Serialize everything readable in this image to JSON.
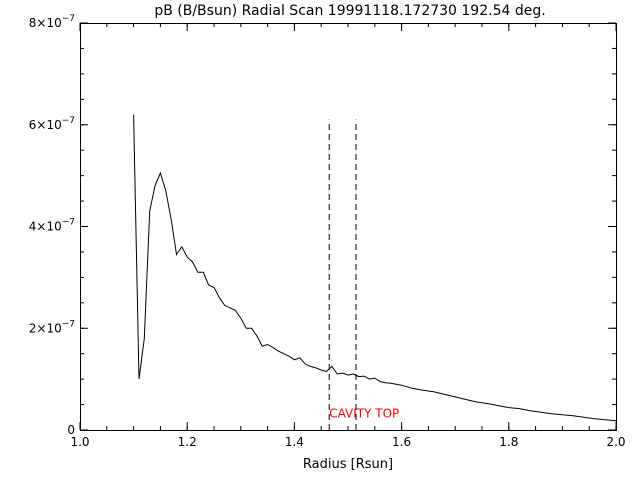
{
  "chart_data": {
    "type": "line",
    "title": "pB (B/Bsun) Radial Scan 19991118.172730 192.54 deg.",
    "xlabel": "Radius [Rsun]",
    "ylabel": "",
    "xlim": [
      1.0,
      2.0
    ],
    "ylim": [
      0,
      8e-07
    ],
    "xticks": [
      {
        "value": 1.0,
        "label": "1.0"
      },
      {
        "value": 1.2,
        "label": "1.2"
      },
      {
        "value": 1.4,
        "label": "1.4"
      },
      {
        "value": 1.6,
        "label": "1.6"
      },
      {
        "value": 1.8,
        "label": "1.8"
      },
      {
        "value": 2.0,
        "label": "2.0"
      }
    ],
    "yticks": [
      {
        "value": 0,
        "base": "0",
        "exp": ""
      },
      {
        "value": 2e-07,
        "base": "2×10",
        "exp": "−7"
      },
      {
        "value": 4e-07,
        "base": "4×10",
        "exp": "−7"
      },
      {
        "value": 6e-07,
        "base": "6×10",
        "exp": "−7"
      },
      {
        "value": 8e-07,
        "base": "8×10",
        "exp": "−7"
      }
    ],
    "series": [
      {
        "x": [
          1.1,
          1.11,
          1.12,
          1.13,
          1.14,
          1.15,
          1.16,
          1.17,
          1.18,
          1.19,
          1.2,
          1.21,
          1.22,
          1.23,
          1.24,
          1.25,
          1.26,
          1.27,
          1.28,
          1.29,
          1.3,
          1.31,
          1.32,
          1.33,
          1.34,
          1.35,
          1.36,
          1.37,
          1.38,
          1.39,
          1.4,
          1.41,
          1.42,
          1.43,
          1.44,
          1.45,
          1.46,
          1.47,
          1.48,
          1.49,
          1.5,
          1.51,
          1.52,
          1.53,
          1.54,
          1.55,
          1.56,
          1.57,
          1.58,
          1.59,
          1.6,
          1.62,
          1.64,
          1.66,
          1.68,
          1.7,
          1.72,
          1.74,
          1.76,
          1.78,
          1.8,
          1.82,
          1.84,
          1.86,
          1.88,
          1.9,
          1.92,
          1.94,
          1.96,
          1.98,
          2.0
        ],
        "values": [
          6.2e-07,
          1e-07,
          1.8e-07,
          4.3e-07,
          4.8e-07,
          5.05e-07,
          4.7e-07,
          4.15e-07,
          3.45e-07,
          3.6e-07,
          3.4e-07,
          3.3e-07,
          3.1e-07,
          3.1e-07,
          2.85e-07,
          2.8e-07,
          2.6e-07,
          2.45e-07,
          2.4e-07,
          2.35e-07,
          2.2e-07,
          2e-07,
          2e-07,
          1.85e-07,
          1.65e-07,
          1.68e-07,
          1.62e-07,
          1.55e-07,
          1.5e-07,
          1.45e-07,
          1.38e-07,
          1.42e-07,
          1.3e-07,
          1.25e-07,
          1.22e-07,
          1.18e-07,
          1.15e-07,
          1.25e-07,
          1.1e-07,
          1.12e-07,
          1.08e-07,
          1.1e-07,
          1.05e-07,
          1.06e-07,
          1e-07,
          1.02e-07,
          9.5e-08,
          9.3e-08,
          9.2e-08,
          9e-08,
          8.8e-08,
          8.2e-08,
          7.8e-08,
          7.5e-08,
          7e-08,
          6.5e-08,
          6e-08,
          5.5e-08,
          5.2e-08,
          4.8e-08,
          4.4e-08,
          4.2e-08,
          3.8e-08,
          3.5e-08,
          3.2e-08,
          3e-08,
          2.8e-08,
          2.5e-08,
          2.2e-08,
          2e-08,
          1.8e-08
        ],
        "color": "#000000"
      }
    ],
    "markers": [
      {
        "x": 1.465,
        "ymax": 6.1e-07,
        "style": "dashed"
      },
      {
        "x": 1.515,
        "ymax": 6.1e-07,
        "style": "dashed"
      }
    ],
    "annotation": {
      "text": "CAVITY TOP",
      "x": 1.465,
      "y": 2.5e-08,
      "color": "#ff0000"
    },
    "grid": false,
    "legend": "none",
    "colors": {
      "axis": "#000000",
      "line": "#000000",
      "annotation": "#ff0000",
      "background": "#ffffff"
    }
  }
}
